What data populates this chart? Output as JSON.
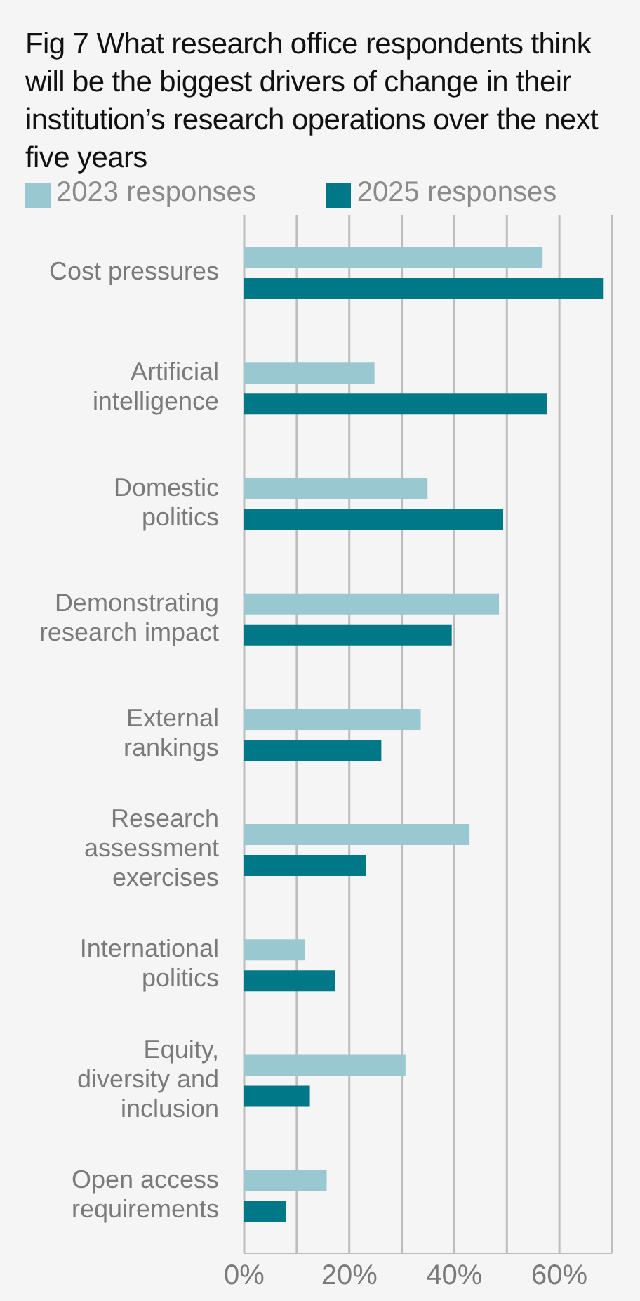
{
  "chart_data": {
    "type": "bar",
    "orientation": "horizontal",
    "title": "Fig 7 What research office respondents think will be the biggest drivers of change in their institution’s research operations over the next five years",
    "categories": [
      "Cost pressures",
      "Artificial intelligence",
      "Domestic politics",
      "Demonstrating research impact",
      "External rankings",
      "Research assessment exercises",
      "International politics",
      "Equity, diversity and inclusion",
      "Open access requirements"
    ],
    "series": [
      {
        "name": "2023 responses",
        "color": "#99c8d0",
        "values": [
          56.8,
          24.8,
          34.9,
          48.5,
          33.6,
          42.9,
          11.5,
          30.7,
          15.7
        ]
      },
      {
        "name": "2025 responses",
        "color": "#017888",
        "values": [
          68.3,
          57.6,
          49.3,
          39.5,
          26.1,
          23.2,
          17.3,
          12.5,
          8.0
        ]
      }
    ],
    "xlim": [
      0,
      70
    ],
    "xticks": [
      {
        "value": 0,
        "label": "0%"
      },
      {
        "value": 10,
        "label": null
      },
      {
        "value": 20,
        "label": "20%"
      },
      {
        "value": 30,
        "label": null
      },
      {
        "value": 40,
        "label": "40%"
      },
      {
        "value": 50,
        "label": null
      },
      {
        "value": 60,
        "label": "60%"
      },
      {
        "value": 70,
        "label": null
      }
    ],
    "grid": "x",
    "legend": "top left"
  }
}
